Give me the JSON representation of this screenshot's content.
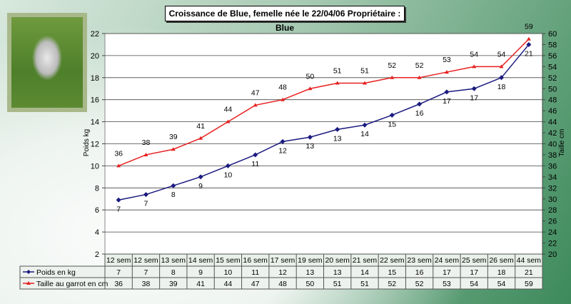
{
  "chart_data": {
    "type": "line",
    "title": "Croissance de Blue, femelle née le 22/04/06  Propriétaire : Blue",
    "ylabel": "Poids kg",
    "y2label": "Taille cm",
    "ylim": [
      2,
      22
    ],
    "y2lim": [
      20,
      60
    ],
    "yticks": [
      2,
      4,
      6,
      8,
      10,
      12,
      14,
      16,
      18,
      20,
      22
    ],
    "y2ticks": [
      20,
      22,
      24,
      26,
      28,
      30,
      32,
      34,
      36,
      38,
      40,
      42,
      44,
      46,
      48,
      50,
      52,
      54,
      56,
      58,
      60
    ],
    "grid": true,
    "categories": [
      "12 sem",
      "12 sem",
      "13 sem",
      "14 sem",
      "15 sem",
      "16 sem",
      "17 sem",
      "19 sem",
      "20 sem",
      "21 sem",
      "22 sem",
      "23 sem",
      "24 sem",
      "25 sem",
      "26 sem",
      "44 sem"
    ],
    "series": [
      {
        "name": "Poids en kg",
        "color": "#1a1a80",
        "axis": "left",
        "marker": "diamond",
        "values": [
          6.9,
          7.4,
          8.2,
          9,
          10,
          11,
          12.2,
          12.6,
          13.3,
          13.7,
          14.6,
          15.6,
          16.7,
          17,
          18,
          21
        ],
        "labels": [
          7,
          7,
          8,
          9,
          10,
          11,
          12,
          13,
          13,
          14,
          15,
          16,
          17,
          17,
          18,
          21
        ]
      },
      {
        "name": "Taille au garrot en cm",
        "color": "#e82020",
        "axis": "right",
        "marker": "triangle",
        "values": [
          36,
          38,
          39,
          41,
          44,
          47,
          48,
          50,
          51,
          51,
          52,
          52,
          53,
          54,
          54,
          59
        ],
        "labels": [
          36,
          38,
          39,
          41,
          44,
          47,
          48,
          50,
          51,
          51,
          52,
          52,
          53,
          54,
          54,
          59
        ]
      }
    ],
    "legend": "data-table-bottom"
  },
  "photo": {
    "description_icon": "dog-photo"
  }
}
